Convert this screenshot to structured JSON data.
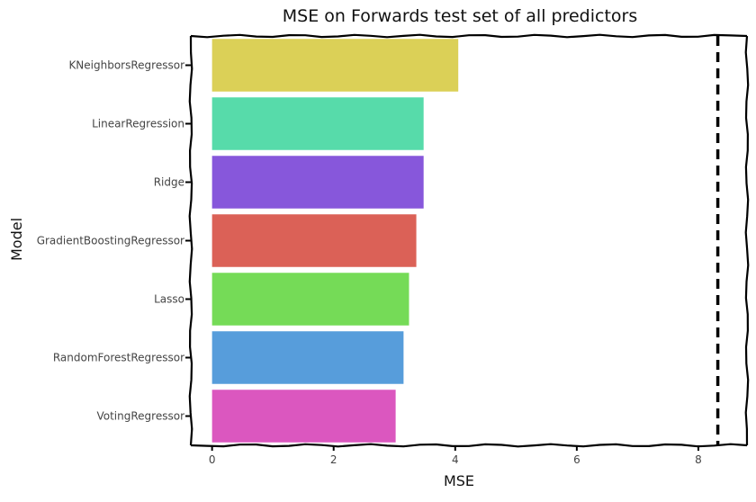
{
  "chart_data": {
    "type": "bar",
    "orientation": "horizontal",
    "title": "MSE on Forwards test set of all predictors",
    "xlabel": "MSE",
    "ylabel": "Model",
    "categories": [
      "KNeighborsRegressor",
      "LinearRegression",
      "Ridge",
      "GradientBoostingRegressor",
      "Lasso",
      "RandomForestRegressor",
      "VotingRegressor"
    ],
    "values": [
      4.05,
      3.48,
      3.48,
      3.36,
      3.24,
      3.15,
      3.02
    ],
    "colors": [
      "#dbd057",
      "#57dbaa",
      "#8757db",
      "#db6157",
      "#75db57",
      "#579ddb",
      "#db57bf"
    ],
    "xlim": [
      -0.35,
      8.8
    ],
    "xticks": [
      0,
      2,
      4,
      6,
      8
    ],
    "reference_line": {
      "x": 8.32,
      "style": "dashed",
      "color": "#000000"
    },
    "grid": false,
    "legend": "none"
  }
}
